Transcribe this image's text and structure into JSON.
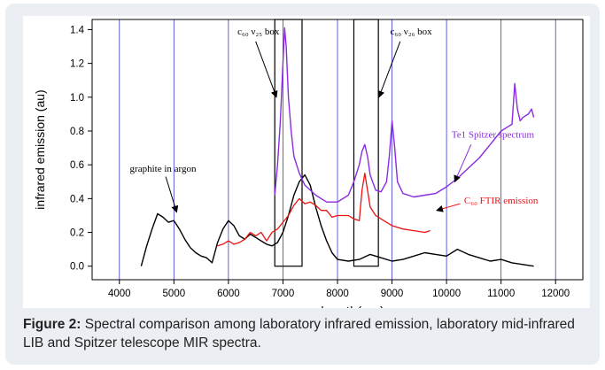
{
  "chart_data": {
    "type": "line",
    "title": "",
    "xlabel": "wavelength(nm)",
    "ylabel": "infrared emission (au)",
    "xlim": [
      3500,
      12500
    ],
    "ylim": [
      -0.08,
      1.46
    ],
    "xticks": [
      4000,
      5000,
      6000,
      7000,
      8000,
      9000,
      10000,
      11000,
      12000
    ],
    "yticks": [
      0.0,
      0.2,
      0.4,
      0.6,
      0.8,
      1.0,
      1.2,
      1.4
    ],
    "ytick_labels": [
      "0.0",
      "0.2",
      "0.4",
      "0.6",
      "0.8",
      "1.0",
      "1.2",
      "1.4"
    ],
    "vertical_gridlines": [
      4000,
      5000,
      6000,
      7000,
      8000,
      9000,
      10000,
      11000,
      12000
    ],
    "grid_color": "#3a3ad8",
    "series": [
      {
        "name": "graphite in argon",
        "color": "#000000",
        "x": [
          4400,
          4500,
          4600,
          4700,
          4800,
          4900,
          5000,
          5100,
          5200,
          5300,
          5400,
          5500,
          5600,
          5700,
          5800,
          5900,
          6000,
          6100,
          6200,
          6300,
          6400,
          6500,
          6600,
          6700,
          6800,
          6900,
          7000,
          7100,
          7200,
          7300,
          7400,
          7500,
          7600,
          7700,
          7800,
          7900,
          8000,
          8200,
          8400,
          8600,
          8800,
          9000,
          9200,
          9400,
          9600,
          9800,
          10000,
          10200,
          10400,
          10600,
          10800,
          11000,
          11200,
          11400,
          11600
        ],
        "y": [
          0.0,
          0.12,
          0.22,
          0.31,
          0.29,
          0.26,
          0.27,
          0.22,
          0.16,
          0.11,
          0.08,
          0.06,
          0.05,
          0.02,
          0.14,
          0.22,
          0.27,
          0.24,
          0.18,
          0.16,
          0.19,
          0.17,
          0.15,
          0.13,
          0.12,
          0.14,
          0.2,
          0.3,
          0.42,
          0.5,
          0.54,
          0.48,
          0.35,
          0.24,
          0.15,
          0.08,
          0.04,
          0.03,
          0.04,
          0.07,
          0.05,
          0.03,
          0.04,
          0.06,
          0.08,
          0.07,
          0.06,
          0.1,
          0.07,
          0.05,
          0.03,
          0.04,
          0.02,
          0.01,
          0.0
        ]
      },
      {
        "name": "Te1 Spitzer spectrum",
        "color": "#8b2be2",
        "x": [
          6850,
          6900,
          6950,
          7000,
          7030,
          7060,
          7100,
          7150,
          7200,
          7300,
          7400,
          7600,
          7800,
          8000,
          8200,
          8300,
          8400,
          8450,
          8500,
          8550,
          8600,
          8700,
          8800,
          8900,
          8950,
          9000,
          9050,
          9100,
          9200,
          9400,
          9600,
          9800,
          10000,
          10200,
          10400,
          10600,
          10800,
          11000,
          11100,
          11200,
          11250,
          11300,
          11350,
          11400,
          11500,
          11560,
          11600
        ],
        "y": [
          0.42,
          0.6,
          0.85,
          1.2,
          1.41,
          1.3,
          1.0,
          0.8,
          0.65,
          0.55,
          0.48,
          0.42,
          0.38,
          0.38,
          0.42,
          0.5,
          0.6,
          0.68,
          0.72,
          0.65,
          0.54,
          0.45,
          0.44,
          0.5,
          0.65,
          0.86,
          0.7,
          0.5,
          0.43,
          0.41,
          0.42,
          0.43,
          0.47,
          0.52,
          0.58,
          0.64,
          0.72,
          0.8,
          0.82,
          0.84,
          1.08,
          0.93,
          0.86,
          0.88,
          0.9,
          0.93,
          0.88
        ]
      },
      {
        "name": "C60 FTIR emission",
        "color": "#ee1111",
        "x": [
          5800,
          5900,
          6000,
          6100,
          6200,
          6300,
          6400,
          6500,
          6600,
          6700,
          6800,
          6900,
          7000,
          7100,
          7200,
          7300,
          7400,
          7500,
          7600,
          7700,
          7800,
          7900,
          8000,
          8100,
          8200,
          8300,
          8400,
          8450,
          8500,
          8550,
          8600,
          8700,
          8800,
          9000,
          9200,
          9400,
          9600,
          9700
        ],
        "y": [
          0.12,
          0.13,
          0.15,
          0.13,
          0.14,
          0.16,
          0.2,
          0.18,
          0.2,
          0.15,
          0.2,
          0.22,
          0.26,
          0.3,
          0.36,
          0.4,
          0.37,
          0.38,
          0.36,
          0.33,
          0.33,
          0.29,
          0.3,
          0.3,
          0.3,
          0.28,
          0.27,
          0.45,
          0.55,
          0.45,
          0.35,
          0.3,
          0.28,
          0.24,
          0.22,
          0.21,
          0.2,
          0.21
        ]
      }
    ],
    "boxes": [
      {
        "label": "c₆₀ ν₂₅ box",
        "x0": 6850,
        "x1": 7350,
        "y0": 0.0,
        "y1": 1.46
      },
      {
        "label": "c₆₀ ν₂₆ box",
        "x0": 8300,
        "x1": 8750,
        "y0": 0.0,
        "y1": 1.46
      }
    ],
    "annotations": [
      {
        "text": "graphite in argon",
        "color": "#000000"
      },
      {
        "text": "Te1 Spitzer spectrum",
        "color": "#8b2be2"
      },
      {
        "text": "C₆₀ FTIR emission",
        "color": "#ee1111"
      }
    ]
  },
  "caption": {
    "label": "Figure 2:",
    "text": " Spectral comparison among laboratory infrared emission, laboratory mid-infrared LIB and Spitzer telescope MIR spectra."
  }
}
